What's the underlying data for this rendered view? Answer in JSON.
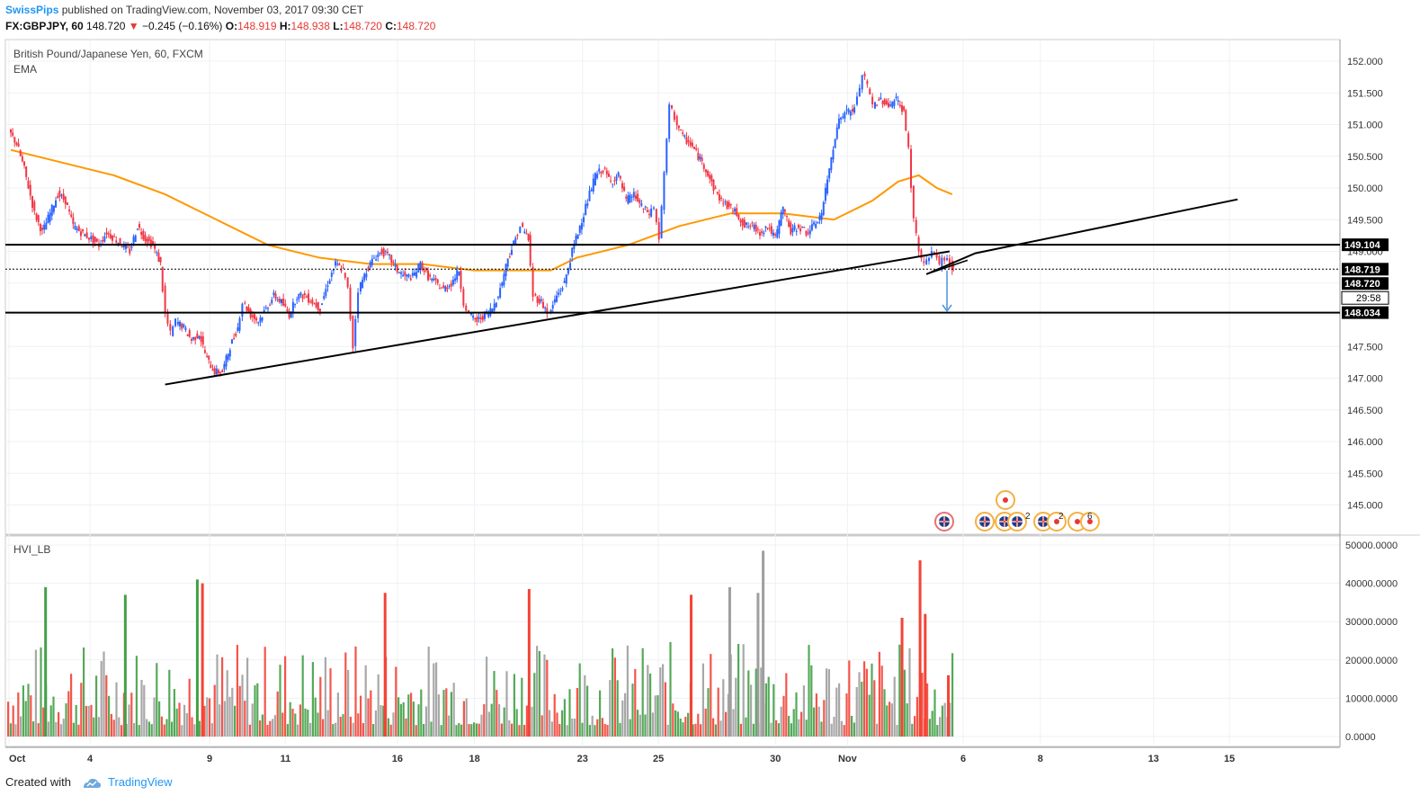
{
  "header": {
    "author": "SwissPips",
    "published_text": "published on TradingView.com, November 03, 2017 09:30 CET",
    "symbol": "FX:GBPJPY, 60",
    "last_price": "148.720",
    "change_arrow": "▼",
    "change": "−0.245 (−0.16%)",
    "open_label": "O:",
    "open": "148.919",
    "high_label": "H:",
    "high": "148.938",
    "low_label": "L:",
    "low": "148.720",
    "close_label": "C:",
    "close": "148.720"
  },
  "footer": {
    "created_with": "Created with",
    "brand": "TradingView"
  },
  "chart_data": [
    {
      "type": "candlestick",
      "title": "British Pound/Japanese Yen, 60, FXCM",
      "indicator_label": "EMA",
      "y_ticks": [
        "145.000",
        "145.500",
        "146.000",
        "146.500",
        "147.000",
        "147.500",
        "148.000",
        "148.500",
        "149.000",
        "149.500",
        "150.000",
        "150.500",
        "151.000",
        "151.500",
        "152.000"
      ],
      "ylim": [
        144.6,
        152.45
      ],
      "x_ticks": [
        "Oct",
        "4",
        "9",
        "11",
        "16",
        "18",
        "23",
        "25",
        "30",
        "Nov",
        "6",
        "8",
        "13",
        "15"
      ],
      "price_series": [
        [
          0,
          150.9
        ],
        [
          0.3,
          150.7
        ],
        [
          0.6,
          150.3
        ],
        [
          1,
          149.6
        ],
        [
          1.3,
          149.3
        ],
        [
          1.6,
          149.6
        ],
        [
          1.9,
          149.9
        ],
        [
          2.2,
          149.8
        ],
        [
          2.5,
          149.4
        ],
        [
          2.8,
          149.3
        ],
        [
          3.2,
          149.2
        ],
        [
          3.5,
          149.1
        ],
        [
          3.8,
          149.3
        ],
        [
          4.1,
          149.2
        ],
        [
          4.4,
          149.1
        ],
        [
          4.7,
          149.0
        ],
        [
          5.0,
          149.4
        ],
        [
          5.3,
          149.2
        ],
        [
          5.6,
          149.1
        ],
        [
          5.9,
          148.8
        ],
        [
          6.1,
          148.0
        ],
        [
          6.3,
          147.7
        ],
        [
          6.5,
          147.9
        ],
        [
          6.8,
          147.8
        ],
        [
          7.1,
          147.6
        ],
        [
          7.4,
          147.7
        ],
        [
          7.7,
          147.3
        ],
        [
          8.0,
          147.1
        ],
        [
          8.3,
          147.1
        ],
        [
          8.6,
          147.5
        ],
        [
          8.9,
          147.8
        ],
        [
          9.1,
          148.2
        ],
        [
          9.4,
          148.0
        ],
        [
          9.7,
          147.9
        ],
        [
          10.0,
          148.1
        ],
        [
          10.3,
          148.3
        ],
        [
          10.6,
          148.2
        ],
        [
          10.9,
          148.0
        ],
        [
          11.2,
          148.3
        ],
        [
          11.5,
          148.3
        ],
        [
          11.8,
          148.2
        ],
        [
          12.1,
          148.1
        ],
        [
          12.4,
          148.5
        ],
        [
          12.7,
          148.8
        ],
        [
          13.0,
          148.7
        ],
        [
          13.2,
          148.4
        ],
        [
          13.4,
          147.5
        ],
        [
          13.6,
          148.4
        ],
        [
          13.9,
          148.7
        ],
        [
          14.2,
          148.9
        ],
        [
          14.5,
          149.0
        ],
        [
          14.8,
          148.9
        ],
        [
          15.1,
          148.7
        ],
        [
          15.4,
          148.6
        ],
        [
          15.7,
          148.6
        ],
        [
          16.0,
          148.8
        ],
        [
          16.3,
          148.6
        ],
        [
          16.6,
          148.5
        ],
        [
          16.9,
          148.4
        ],
        [
          17.2,
          148.5
        ],
        [
          17.5,
          148.7
        ],
        [
          17.7,
          148.2
        ],
        [
          17.9,
          148.0
        ],
        [
          18.2,
          147.9
        ],
        [
          18.5,
          148.0
        ],
        [
          18.8,
          148.1
        ],
        [
          19.1,
          148.4
        ],
        [
          19.4,
          148.9
        ],
        [
          19.7,
          149.2
        ],
        [
          19.9,
          149.4
        ],
        [
          20.2,
          149.2
        ],
        [
          20.4,
          148.3
        ],
        [
          20.7,
          148.2
        ],
        [
          21.0,
          148.0
        ],
        [
          21.3,
          148.3
        ],
        [
          21.6,
          148.5
        ],
        [
          21.9,
          149.0
        ],
        [
          22.2,
          149.4
        ],
        [
          22.5,
          149.8
        ],
        [
          22.8,
          150.2
        ],
        [
          23.1,
          150.3
        ],
        [
          23.4,
          150.1
        ],
        [
          23.7,
          150.2
        ],
        [
          24.0,
          149.8
        ],
        [
          24.3,
          149.9
        ],
        [
          24.6,
          149.7
        ],
        [
          24.9,
          149.6
        ],
        [
          25.1,
          149.7
        ],
        [
          25.3,
          149.2
        ],
        [
          25.5,
          150.2
        ],
        [
          25.7,
          151.3
        ],
        [
          25.9,
          151.1
        ],
        [
          26.2,
          150.8
        ],
        [
          26.5,
          150.7
        ],
        [
          26.8,
          150.5
        ],
        [
          27.1,
          150.3
        ],
        [
          27.4,
          150.0
        ],
        [
          27.7,
          149.8
        ],
        [
          28.0,
          149.7
        ],
        [
          28.3,
          149.6
        ],
        [
          28.6,
          149.4
        ],
        [
          28.9,
          149.4
        ],
        [
          29.2,
          149.3
        ],
        [
          29.5,
          149.4
        ],
        [
          29.8,
          149.2
        ],
        [
          30.1,
          149.7
        ],
        [
          30.4,
          149.3
        ],
        [
          30.7,
          149.4
        ],
        [
          31.0,
          149.3
        ],
        [
          31.3,
          149.4
        ],
        [
          31.6,
          149.6
        ],
        [
          31.9,
          150.3
        ],
        [
          32.2,
          151.0
        ],
        [
          32.5,
          151.2
        ],
        [
          32.8,
          151.2
        ],
        [
          33.0,
          151.4
        ],
        [
          33.2,
          151.8
        ],
        [
          33.4,
          151.6
        ],
        [
          33.6,
          151.3
        ],
        [
          33.9,
          151.4
        ],
        [
          34.2,
          151.3
        ],
        [
          34.5,
          151.4
        ],
        [
          34.8,
          151.2
        ],
        [
          35.0,
          150.6
        ],
        [
          35.2,
          149.5
        ],
        [
          35.4,
          149.0
        ],
        [
          35.6,
          148.8
        ],
        [
          35.8,
          148.9
        ],
        [
          36.0,
          149.0
        ],
        [
          36.2,
          148.8
        ],
        [
          36.4,
          148.9
        ],
        [
          36.6,
          148.8
        ],
        [
          36.7,
          148.72
        ]
      ],
      "ema_series": [
        [
          0,
          150.6
        ],
        [
          2,
          150.4
        ],
        [
          4,
          150.2
        ],
        [
          6,
          149.9
        ],
        [
          8,
          149.5
        ],
        [
          10,
          149.1
        ],
        [
          12,
          148.9
        ],
        [
          14,
          148.8
        ],
        [
          16,
          148.8
        ],
        [
          18,
          148.7
        ],
        [
          20,
          148.7
        ],
        [
          21,
          148.7
        ],
        [
          22,
          148.9
        ],
        [
          24,
          149.1
        ],
        [
          26,
          149.4
        ],
        [
          28,
          149.6
        ],
        [
          30,
          149.6
        ],
        [
          32,
          149.5
        ],
        [
          33.5,
          149.8
        ],
        [
          34.5,
          150.1
        ],
        [
          35.3,
          150.2
        ],
        [
          36.0,
          150.0
        ],
        [
          36.6,
          149.9
        ]
      ],
      "trendline_1": [
        [
          6,
          146.9
        ],
        [
          36.5,
          149.0
        ]
      ],
      "trendline_2": [
        [
          35.6,
          148.64
        ],
        [
          37.5,
          148.97
        ],
        [
          47.7,
          149.82
        ]
      ],
      "horizontal_levels": [
        {
          "value": 149.104,
          "label": "149.104",
          "style": "solid"
        },
        {
          "value": 148.719,
          "label": "148.719",
          "style": "dotted"
        },
        {
          "value": 148.034,
          "label": "148.034",
          "style": "solid"
        }
      ],
      "price_labels": [
        "148.720",
        "29:58"
      ],
      "projection_arrow": {
        "x": 36.4,
        "from": 148.7,
        "to": 148.03
      }
    },
    {
      "type": "bar",
      "title": "HVI_LB",
      "y_ticks": [
        "0.0000",
        "10000.0000",
        "20000.0000",
        "30000.0000",
        "40000.0000",
        "50000.0000"
      ],
      "ylim": [
        0,
        52000
      ],
      "colors": {
        "up": "#43a047",
        "down": "#f44336",
        "neutral": "#9e9e9e"
      },
      "notable_bars": [
        {
          "x": 1.3,
          "value": 39000,
          "color": "#43a047"
        },
        {
          "x": 4.4,
          "value": 37000,
          "color": "#43a047"
        },
        {
          "x": 7.2,
          "value": 41000,
          "color": "#43a047"
        },
        {
          "x": 7.4,
          "value": 40000,
          "color": "#f44336"
        },
        {
          "x": 14.5,
          "value": 37500,
          "color": "#f44336"
        },
        {
          "x": 20.1,
          "value": 38500,
          "color": "#f44336"
        },
        {
          "x": 26.4,
          "value": 37000,
          "color": "#f44336"
        },
        {
          "x": 27.9,
          "value": 39000,
          "color": "#9e9e9e"
        },
        {
          "x": 29.2,
          "value": 48500,
          "color": "#9e9e9e"
        },
        {
          "x": 29.0,
          "value": 37500,
          "color": "#9e9e9e"
        },
        {
          "x": 34.6,
          "value": 31000,
          "color": "#f44336"
        },
        {
          "x": 35.3,
          "value": 46000,
          "color": "#f44336"
        },
        {
          "x": 35.5,
          "value": 32000,
          "color": "#f44336"
        },
        {
          "x": 36.4,
          "value": 16000,
          "color": "#f44336"
        }
      ]
    }
  ],
  "colors": {
    "up_candle": "#2962ff",
    "down_candle": "#f23645",
    "ema": "#ff9800",
    "level_line": "#000000",
    "arrow": "#4a90e2",
    "brand": "#2196f3"
  },
  "event_icons": [
    "uk-flag",
    "uk-flag",
    "uk-flag",
    "uk-flag",
    "uk-flag",
    "event-dot",
    "event-dot",
    "event-dot",
    "event-dot"
  ],
  "event_counts": [
    "2",
    "2",
    "6"
  ]
}
